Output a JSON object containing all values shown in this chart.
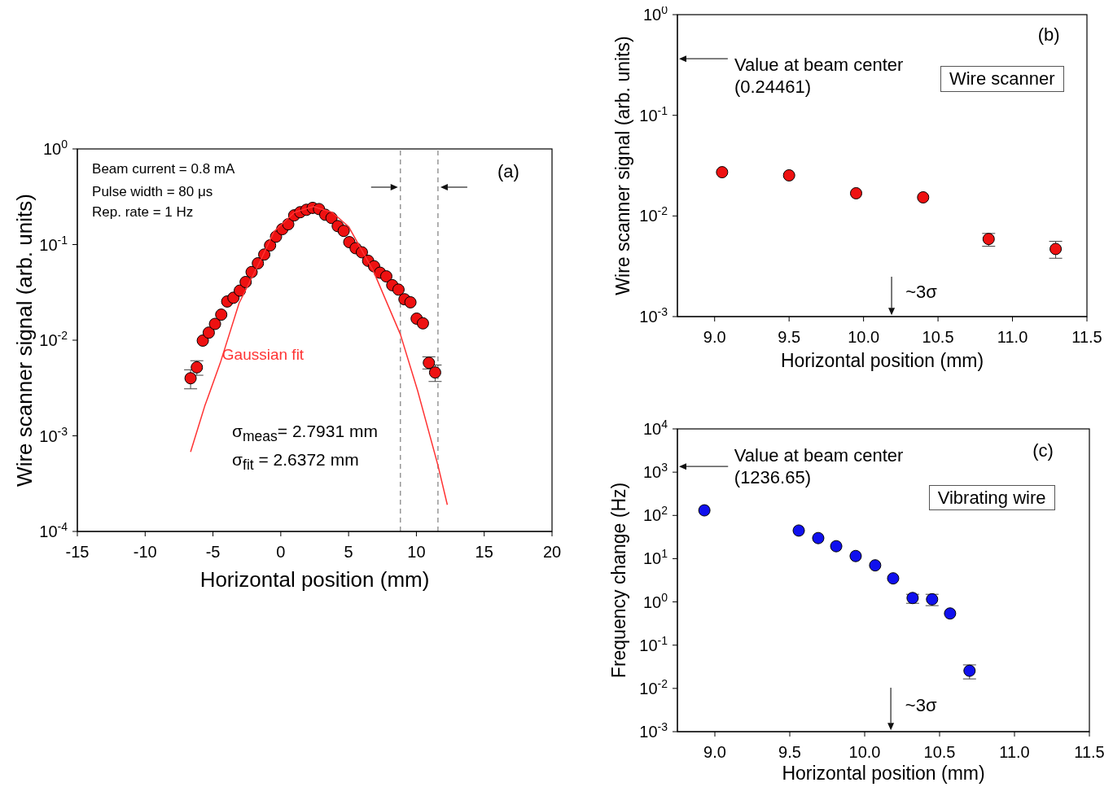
{
  "chart_data": [
    {
      "type": "scatter",
      "xlabel": "Horizontal position (mm)",
      "ylabel": "Wire scanner signal (arb. units)",
      "log": "y",
      "xlim": [
        -15,
        20
      ],
      "xticks": [
        -15,
        -10,
        -5,
        0,
        5,
        10,
        15,
        20
      ],
      "ylim": [
        0.0001,
        1
      ],
      "yticks": [
        {
          "value": 0.0001,
          "label": "10$^{-4}$"
        },
        {
          "value": 0.001,
          "label": "10$^{-3}$"
        },
        {
          "value": 0.01,
          "label": "10$^{-2}$"
        },
        {
          "value": 0.1,
          "label": "10$^{-1}$"
        },
        {
          "value": 1,
          "label": "10$^{0}$"
        }
      ],
      "series": [
        {
          "marker": "circle",
          "color": "#ee1111",
          "x": [
            -6.65,
            -6.19,
            -5.75,
            -5.31,
            -4.85,
            -4.39,
            -3.95,
            -3.49,
            -3.02,
            -2.59,
            -2.15,
            -1.69,
            -1.22,
            -0.79,
            -0.35,
            0.11,
            0.55,
            0.99,
            1.43,
            1.89,
            2.35,
            2.82,
            3.28,
            3.74,
            4.2,
            4.64,
            5.05,
            5.52,
            5.98,
            6.44,
            6.88,
            7.32,
            7.78,
            8.22,
            8.68,
            9.12,
            9.56,
            10.02,
            10.48,
            10.92,
            11.38
          ],
          "values": [
            0.004,
            0.0052,
            0.0099,
            0.012,
            0.0148,
            0.0185,
            0.0254,
            0.0278,
            0.033,
            0.0406,
            0.0516,
            0.0637,
            0.0787,
            0.098,
            0.121,
            0.145,
            0.163,
            0.202,
            0.218,
            0.231,
            0.242,
            0.235,
            0.205,
            0.19,
            0.156,
            0.139,
            0.106,
            0.0916,
            0.083,
            0.0677,
            0.0592,
            0.0508,
            0.0465,
            0.0376,
            0.0338,
            0.0268,
            0.0249,
            0.0168,
            0.015,
            0.0058,
            0.0046
          ],
          "errors": [
            [
              0.0031,
              0.0049
            ],
            [
              0.0043,
              0.0061
            ],
            null,
            null,
            null,
            null,
            null,
            null,
            null,
            null,
            null,
            null,
            null,
            null,
            null,
            null,
            null,
            null,
            null,
            null,
            null,
            null,
            null,
            null,
            null,
            null,
            null,
            null,
            null,
            null,
            null,
            null,
            null,
            null,
            null,
            null,
            null,
            null,
            null,
            [
              0.005,
              0.0067
            ],
            [
              0.0037,
              0.0055
            ]
          ]
        },
        {
          "type": "line",
          "marker": "none",
          "name": "Gaussian fit",
          "color": "#ff3333",
          "x": [
            -6.65,
            -5.61,
            -4.45,
            -3.07,
            -1.45,
            -0.5,
            1,
            2.4,
            3.8,
            5,
            6.85,
            8.82,
            10.09,
            11.59,
            12.28
          ],
          "values": [
            0.00068,
            0.00204,
            0.00585,
            0.0245,
            0.0703,
            0.137,
            0.217,
            0.25,
            0.217,
            0.154,
            0.052,
            0.0115,
            0.00297,
            0.00049,
            0.00019
          ]
        }
      ],
      "ref_lines": [
        {
          "axis": "x",
          "value": 8.82,
          "color": "#888888",
          "line_style": "dashed"
        },
        {
          "axis": "x",
          "value": 11.59,
          "color": "#888888",
          "line_style": "dashed"
        }
      ],
      "annotations": [
        "Beam current = 0.8 mA",
        "Pulse width = 80 μs",
        "Rep. rate = 1 Hz",
        "(a)",
        "σ$_{meas}$= 2.7931 mm",
        "σ$_{fit}$ = 2.6372 mm"
      ]
    },
    {
      "type": "scatter",
      "xlabel": "Horizontal position (mm)",
      "ylabel": "Wire scanner signal (arb. units)",
      "log": "y",
      "marker": "circle",
      "xlim": [
        8.75,
        11.5
      ],
      "xticks": [
        {
          "value": 9,
          "label": "9.0"
        },
        9.5,
        {
          "value": 10,
          "label": "10.0"
        },
        10.5,
        {
          "value": 11,
          "label": "11.0"
        },
        11.5
      ],
      "ylim": [
        0.001,
        1
      ],
      "yticks": [
        {
          "value": 0.001,
          "label": "10$^{-3}$"
        },
        {
          "value": 0.01,
          "label": "10$^{-2}$"
        },
        {
          "value": 0.1,
          "label": "10$^{-1}$"
        },
        {
          "value": 1,
          "label": "10$^{0}$"
        }
      ],
      "series": [
        {
          "color": "#ee1111",
          "x": [
            9.05,
            9.5,
            9.95,
            10.4,
            10.84,
            11.29
          ],
          "values": [
            0.0272,
            0.0253,
            0.0168,
            0.0153,
            0.0059,
            0.0047
          ],
          "errors": [
            null,
            null,
            null,
            null,
            [
              0.005,
              0.0067
            ],
            [
              0.0038,
              0.0056
            ]
          ]
        }
      ],
      "annotations": [
        "(b)",
        "Wire scanner",
        "Value at beam center (0.24461)",
        "~3σ"
      ]
    },
    {
      "type": "scatter",
      "xlabel": "Horizontal position (mm)",
      "ylabel": "Frequency change (Hz)",
      "log": "y",
      "marker": "circle",
      "xlim": [
        8.75,
        11.5
      ],
      "xticks": [
        {
          "value": 9,
          "label": "9.0"
        },
        9.5,
        {
          "value": 10,
          "label": "10.0"
        },
        10.5,
        {
          "value": 11,
          "label": "11.0"
        },
        11.5
      ],
      "ylim": [
        0.001,
        10000
      ],
      "yticks": [
        {
          "value": 0.001,
          "label": "10$^{-3}$"
        },
        {
          "value": 0.01,
          "label": "10$^{-2}$"
        },
        {
          "value": 0.1,
          "label": "10$^{-1}$"
        },
        {
          "value": 1,
          "label": "10$^{0}$"
        },
        {
          "value": 10,
          "label": "10$^{1}$"
        },
        {
          "value": 100,
          "label": "10$^{2}$"
        },
        {
          "value": 1000,
          "label": "10$^{3}$"
        },
        {
          "value": 10000,
          "label": "10$^{4}$"
        }
      ],
      "series": [
        {
          "color": "#1010ee",
          "x": [
            8.93,
            9.56,
            9.69,
            9.81,
            9.94,
            10.07,
            10.19,
            10.32,
            10.45,
            10.57,
            10.7
          ],
          "values": [
            131,
            44.6,
            29.9,
            19.4,
            11.5,
            7,
            3.5,
            1.23,
            1.15,
            0.54,
            0.0256
          ],
          "errors": [
            null,
            null,
            null,
            null,
            null,
            null,
            null,
            [
              0.93,
              1.5
            ],
            [
              0.82,
              1.5
            ],
            null,
            [
              0.0166,
              0.035
            ]
          ]
        }
      ],
      "annotations": [
        "(c)",
        "Vibrating wire",
        "Value at beam center (1236.65)",
        "~3σ"
      ]
    }
  ]
}
